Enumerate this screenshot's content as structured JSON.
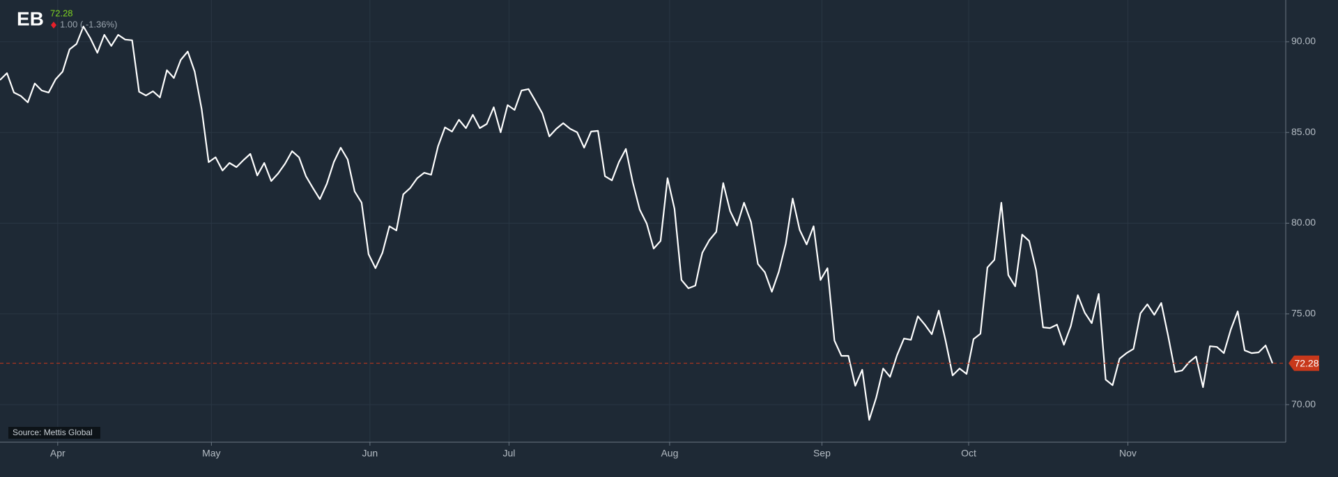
{
  "chart_data": {
    "type": "line",
    "ticker": "EB",
    "change": "1.00 ( -1.36%)",
    "source": "Source: Mettis Global",
    "last_value": 72.28,
    "color": "#ffffff",
    "last_color": "#c8381b",
    "grid": true,
    "xlim": [
      0,
      184.9
    ],
    "ylim": [
      67.93,
      92.3
    ],
    "xticks": [
      {
        "value": 8.3,
        "label": "Apr"
      },
      {
        "value": 30.4,
        "label": "May"
      },
      {
        "value": 53.2,
        "label": "Jun"
      },
      {
        "value": 73.2,
        "label": "Jul"
      },
      {
        "value": 96.3,
        "label": "Aug"
      },
      {
        "value": 118.2,
        "label": "Sep"
      },
      {
        "value": 139.3,
        "label": "Oct"
      },
      {
        "value": 162.2,
        "label": "Nov"
      }
    ],
    "yticks": [
      {
        "value": 70,
        "label": "70.00"
      },
      {
        "value": 75,
        "label": "75.00"
      },
      {
        "value": 80,
        "label": "80.00"
      },
      {
        "value": 85,
        "label": "85.00"
      },
      {
        "value": 90,
        "label": "90.00"
      }
    ],
    "values": [
      87.89,
      88.27,
      87.2,
      87.01,
      86.66,
      87.7,
      87.31,
      87.2,
      87.93,
      88.35,
      89.58,
      89.88,
      90.84,
      90.19,
      89.39,
      90.38,
      89.77,
      90.38,
      90.12,
      90.08,
      87.24,
      87.04,
      87.27,
      86.93,
      88.43,
      88.0,
      89.0,
      89.46,
      88.35,
      86.28,
      83.36,
      83.63,
      82.9,
      83.32,
      83.09,
      83.47,
      83.82,
      82.63,
      83.32,
      82.32,
      82.74,
      83.28,
      83.97,
      83.63,
      82.59,
      81.94,
      81.32,
      82.17,
      83.36,
      84.16,
      83.51,
      81.75,
      81.13,
      78.29,
      77.52,
      78.37,
      79.83,
      79.6,
      81.59,
      81.94,
      82.48,
      82.78,
      82.67,
      84.24,
      85.28,
      85.05,
      85.7,
      85.24,
      85.97,
      85.24,
      85.47,
      86.39,
      85.01,
      86.51,
      86.24,
      87.31,
      87.39,
      86.74,
      86.05,
      84.78,
      85.2,
      85.51,
      85.2,
      85.01,
      84.16,
      85.05,
      85.09,
      82.59,
      82.36,
      83.36,
      84.09,
      82.25,
      80.75,
      79.98,
      78.6,
      79.02,
      82.48,
      80.79,
      76.87,
      76.41,
      76.56,
      78.37,
      79.06,
      79.52,
      82.21,
      80.67,
      79.87,
      81.13,
      80.06,
      77.75,
      77.29,
      76.22,
      77.33,
      78.87,
      81.36,
      79.63,
      78.83,
      79.83,
      76.87,
      77.52,
      73.53,
      72.69,
      72.69,
      71.04,
      71.92,
      69.16,
      70.38,
      71.99,
      71.53,
      72.72,
      73.64,
      73.57,
      74.87,
      74.41,
      73.88,
      75.18,
      73.49,
      71.61,
      71.99,
      71.69,
      73.61,
      73.91,
      77.56,
      77.98,
      81.13,
      77.14,
      76.52,
      79.37,
      79.02,
      77.41,
      74.26,
      74.22,
      74.41,
      73.3,
      74.34,
      76.03,
      75.07,
      74.49,
      76.1,
      71.38,
      71.07,
      72.53,
      72.84,
      73.07,
      75.03,
      75.53,
      74.95,
      75.6,
      73.76,
      71.8,
      71.88,
      72.34,
      72.65,
      70.96,
      73.22,
      73.18,
      72.84,
      74.14,
      75.14,
      72.99,
      72.84,
      72.88,
      73.26,
      72.28
    ]
  }
}
